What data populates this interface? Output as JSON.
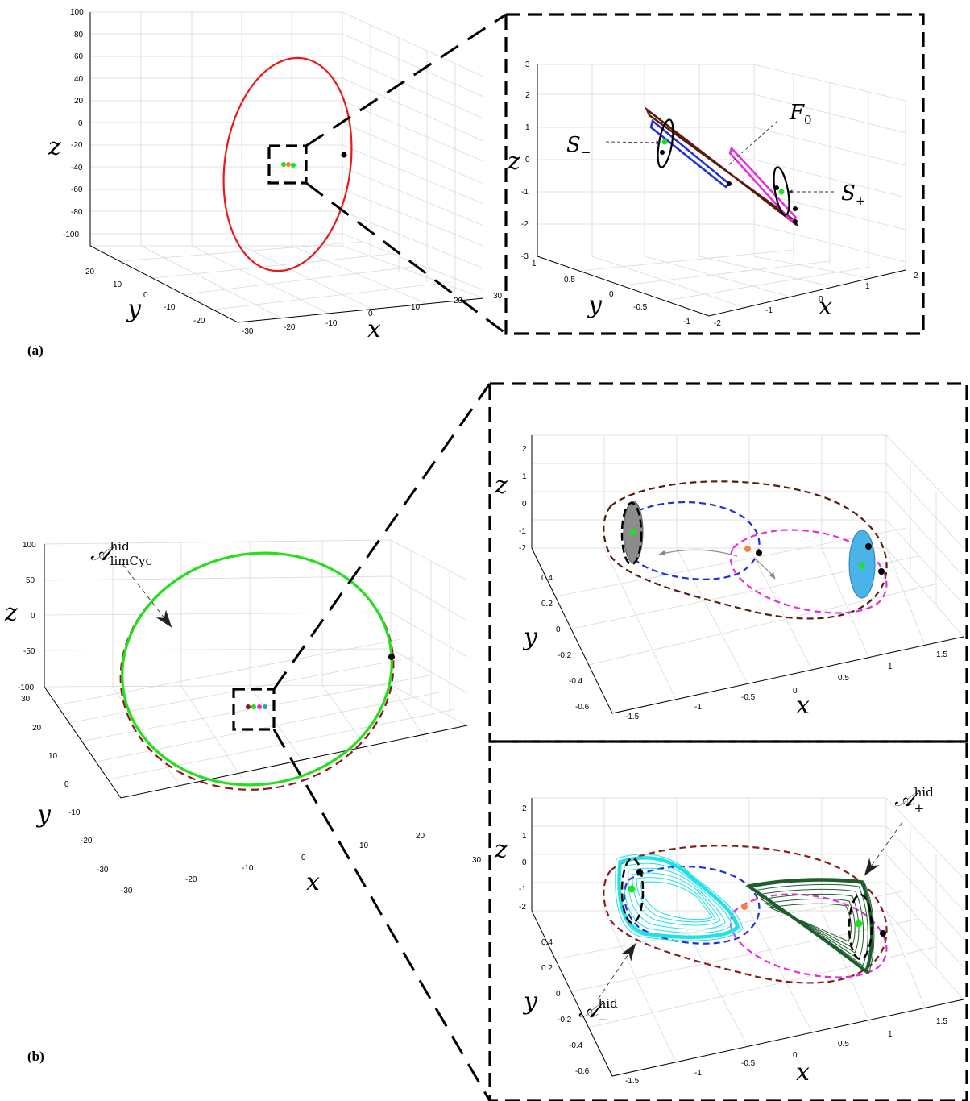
{
  "panel_labels": {
    "a": "(a)",
    "b": "(b)"
  },
  "axis_labels": {
    "x": "x",
    "y": "y",
    "z": "z"
  },
  "a_main": {
    "z_ticks": [
      "100",
      "80",
      "60",
      "40",
      "20",
      "0",
      "-20",
      "-40",
      "-60",
      "-80",
      "-100"
    ],
    "y_ticks": [
      "20",
      "10",
      "0",
      "-10",
      "-20"
    ],
    "x_ticks": [
      "-30",
      "-20",
      "-10",
      "0",
      "10",
      "20",
      "30"
    ]
  },
  "a_zoom": {
    "z_ticks": [
      "3",
      "2",
      "1",
      "0",
      "-1",
      "-2",
      "-3"
    ],
    "y_ticks": [
      "1",
      "0.5",
      "0",
      "-0.5",
      "-1"
    ],
    "x_ticks": [
      "-2",
      "-1",
      "0",
      "1",
      "2"
    ],
    "annotations": {
      "F0": "F",
      "F0_sub": "0",
      "S_minus": "S",
      "S_minus_sub": "−",
      "S_plus": "S",
      "S_plus_sub": "+"
    }
  },
  "b_main": {
    "z_ticks": [
      "100",
      "50",
      "0",
      "-50",
      "-100"
    ],
    "y_ticks": [
      "30",
      "20",
      "10",
      "0",
      "-10",
      "-20",
      "-30"
    ],
    "x_ticks": [
      "-30",
      "-20",
      "-10",
      "0",
      "10",
      "20",
      "30"
    ],
    "annotation": {
      "A": "𝒜",
      "sup": "hid",
      "sub": "limCyc"
    }
  },
  "b_zoom_top": {
    "z_ticks": [
      "2",
      "1",
      "0",
      "-1",
      "-2"
    ],
    "y_ticks": [
      "0.4",
      "0.2",
      "0",
      "-0.2",
      "-0.4",
      "-0.6"
    ],
    "x_ticks": [
      "-1.5",
      "-1",
      "-0.5",
      "0",
      "0.5",
      "1",
      "1.5"
    ]
  },
  "b_zoom_bottom": {
    "z_ticks": [
      "2",
      "1",
      "0",
      "-1",
      "-2"
    ],
    "y_ticks": [
      "0.4",
      "0.2",
      "0",
      "-0.2",
      "-0.4",
      "-0.6"
    ],
    "x_ticks": [
      "-1.5",
      "-1",
      "-0.5",
      "0",
      "0.5",
      "1",
      "1.5"
    ],
    "annotations": {
      "A_plus": "𝒜",
      "A_plus_sup": "hid",
      "A_plus_sub": "+",
      "A_minus": "𝒜",
      "A_minus_sup": "hid",
      "A_minus_sub": "−"
    }
  },
  "colors": {
    "red_cycle": "#e8191b",
    "green_cycle": "#22e01a",
    "dark_red": "#8b1a1a",
    "brown": "#5c1a0e",
    "blue": "#1f2fd6",
    "magenta": "#e62de0",
    "equilibrium_green": "#19e619",
    "orange": "#f5813b",
    "cyan": "#1ee2e8",
    "dark_green": "#1d5e2c",
    "light_blue": "#4ab3e8",
    "gray": "#8c8c8c"
  }
}
